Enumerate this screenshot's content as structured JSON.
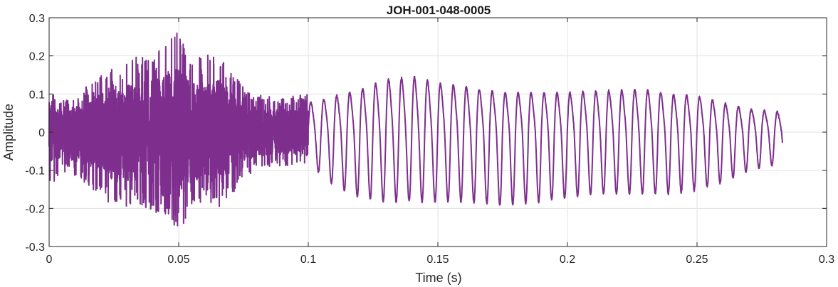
{
  "chart_data": {
    "type": "line",
    "title": "JOH-001-048-0005",
    "xlabel": "Time (s)",
    "ylabel": "Amplitude",
    "xlim": [
      0,
      0.3
    ],
    "ylim": [
      -0.3,
      0.3
    ],
    "xticks": [
      0,
      0.05,
      0.1,
      0.15,
      0.2,
      0.25,
      0.3
    ],
    "xtick_labels": [
      "0",
      "0.05",
      "0.1",
      "0.15",
      "0.2",
      "0.25",
      "0.3"
    ],
    "yticks": [
      -0.3,
      -0.2,
      -0.1,
      0,
      0.1,
      0.2,
      0.3
    ],
    "ytick_labels": [
      "-0.3",
      "-0.2",
      "-0.1",
      "0",
      "0.1",
      "0.2",
      "0.3"
    ],
    "grid": true,
    "line_color": "#7E2F8E",
    "series": [
      {
        "noise_segment": {
          "x_range": [
            0,
            0.1
          ],
          "envelope": [
            {
              "t": 0.0,
              "max": 0.12,
              "min": -0.15
            },
            {
              "t": 0.005,
              "max": 0.08,
              "min": -0.1
            },
            {
              "t": 0.01,
              "max": 0.1,
              "min": -0.12
            },
            {
              "t": 0.02,
              "max": 0.15,
              "min": -0.17
            },
            {
              "t": 0.025,
              "max": 0.17,
              "min": -0.2
            },
            {
              "t": 0.03,
              "max": 0.19,
              "min": -0.2
            },
            {
              "t": 0.035,
              "max": 0.2,
              "min": -0.2
            },
            {
              "t": 0.04,
              "max": 0.21,
              "min": -0.21
            },
            {
              "t": 0.045,
              "max": 0.24,
              "min": -0.22
            },
            {
              "t": 0.05,
              "max": 0.27,
              "min": -0.27
            },
            {
              "t": 0.055,
              "max": 0.2,
              "min": -0.2
            },
            {
              "t": 0.06,
              "max": 0.2,
              "min": -0.18
            },
            {
              "t": 0.065,
              "max": 0.22,
              "min": -0.2
            },
            {
              "t": 0.07,
              "max": 0.17,
              "min": -0.17
            },
            {
              "t": 0.075,
              "max": 0.12,
              "min": -0.12
            },
            {
              "t": 0.08,
              "max": 0.1,
              "min": -0.1
            },
            {
              "t": 0.09,
              "max": 0.09,
              "min": -0.09
            },
            {
              "t": 0.1,
              "max": 0.1,
              "min": -0.08
            }
          ]
        },
        "oscillation_segment": {
          "x_range": [
            0.1,
            0.283
          ],
          "frequency_hz": 200,
          "envelope": [
            {
              "t": 0.1,
              "max": 0.09,
              "min": -0.08
            },
            {
              "t": 0.11,
              "max": 0.11,
              "min": -0.14
            },
            {
              "t": 0.12,
              "max": 0.13,
              "min": -0.17
            },
            {
              "t": 0.13,
              "max": 0.16,
              "min": -0.18
            },
            {
              "t": 0.14,
              "max": 0.17,
              "min": -0.18
            },
            {
              "t": 0.15,
              "max": 0.15,
              "min": -0.18
            },
            {
              "t": 0.16,
              "max": 0.14,
              "min": -0.18
            },
            {
              "t": 0.175,
              "max": 0.12,
              "min": -0.19
            },
            {
              "t": 0.19,
              "max": 0.12,
              "min": -0.18
            },
            {
              "t": 0.2,
              "max": 0.12,
              "min": -0.17
            },
            {
              "t": 0.21,
              "max": 0.125,
              "min": -0.16
            },
            {
              "t": 0.23,
              "max": 0.13,
              "min": -0.16
            },
            {
              "t": 0.24,
              "max": 0.115,
              "min": -0.16
            },
            {
              "t": 0.25,
              "max": 0.11,
              "min": -0.15
            },
            {
              "t": 0.26,
              "max": 0.09,
              "min": -0.13
            },
            {
              "t": 0.27,
              "max": 0.07,
              "min": -0.1
            },
            {
              "t": 0.283,
              "max": 0.06,
              "min": -0.08
            }
          ]
        }
      }
    ]
  }
}
